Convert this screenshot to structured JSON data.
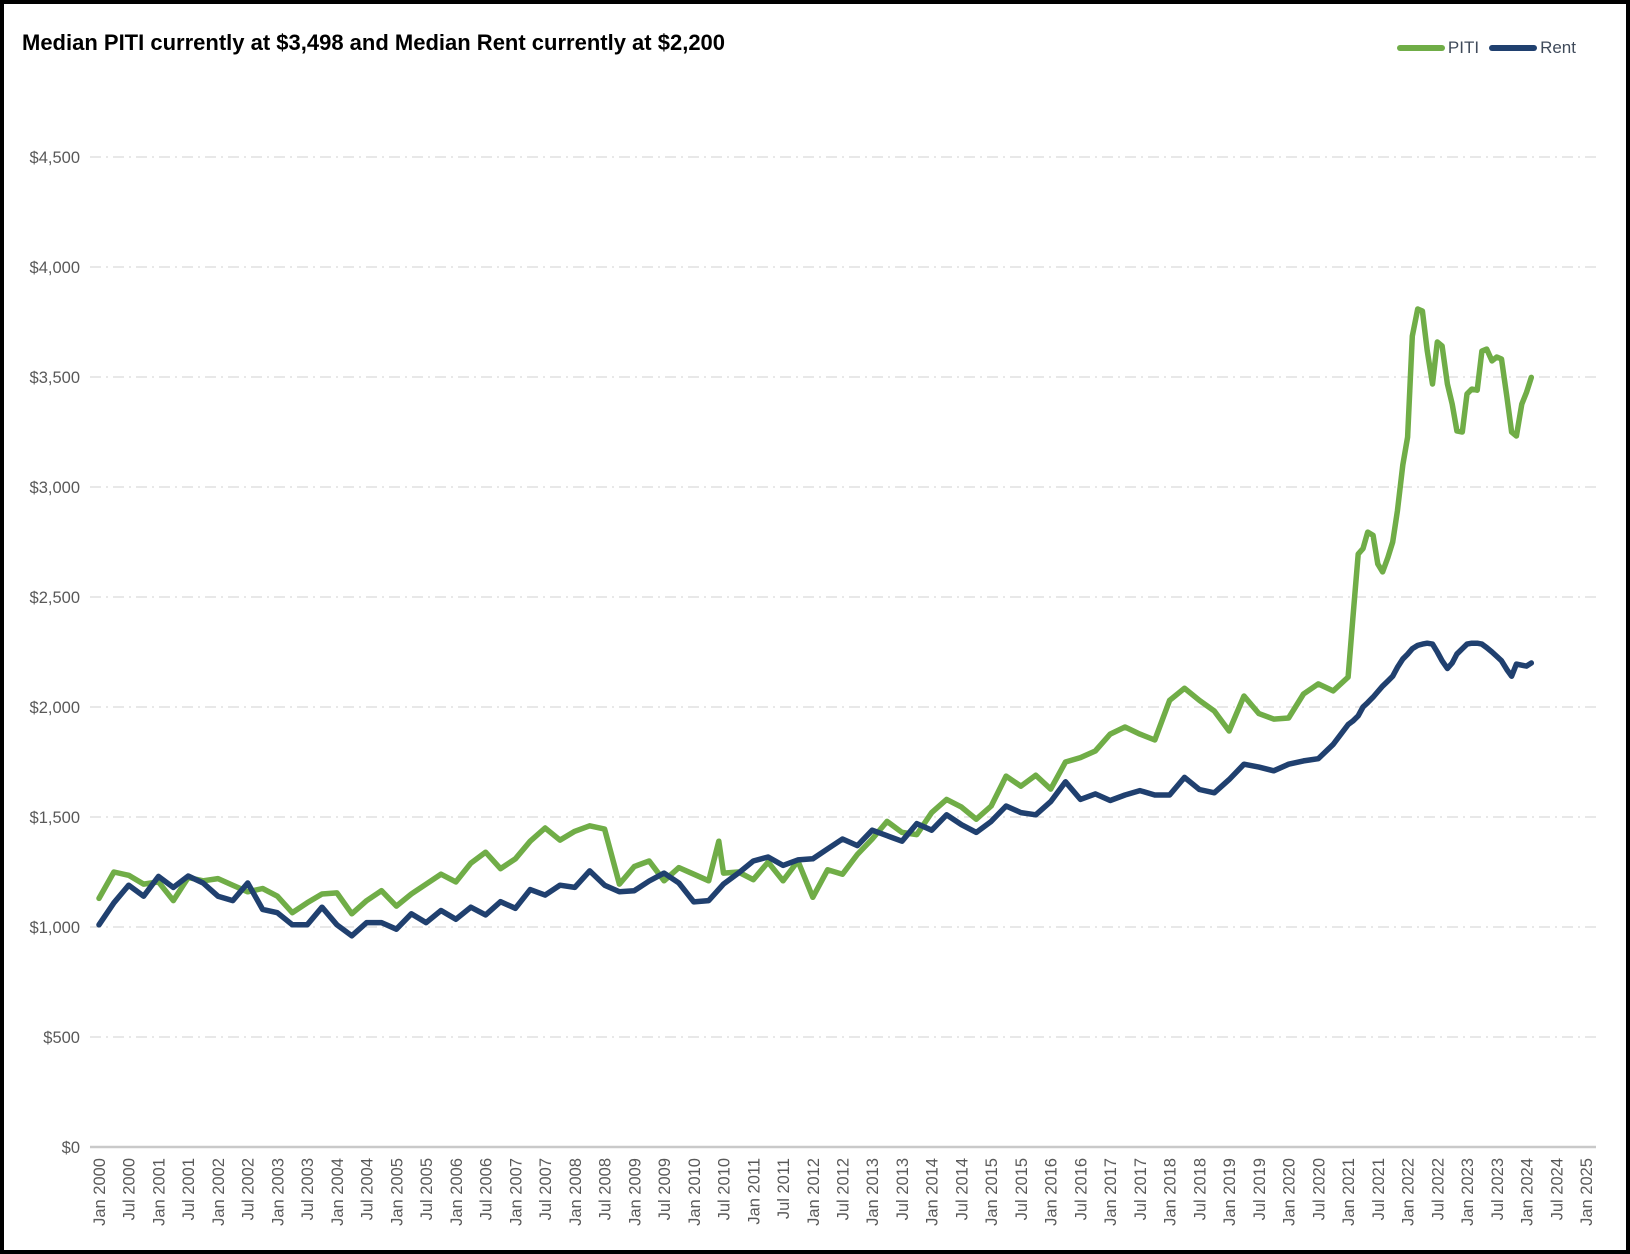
{
  "chart_data": {
    "type": "line",
    "title": "Median PITI currently at $3,498 and Median Rent currently at $2,200",
    "current_values": {
      "piti": "$3,498",
      "rent": "$2,200"
    },
    "legend_position": "top-right",
    "x_axis": {
      "label": "",
      "range_years": [
        2000,
        2025.3
      ],
      "tick_labels": [
        "Jan 2000",
        "Jul 2000",
        "Jan 2001",
        "Jul 2001",
        "Jan 2002",
        "Jul 2002",
        "Jan 2003",
        "Jul 2003",
        "Jan 2004",
        "Jul 2004",
        "Jan 2005",
        "Jul 2005",
        "Jan 2006",
        "Jul 2006",
        "Jan 2007",
        "Jul 2007",
        "Jan 2008",
        "Jul 2008",
        "Jan 2009",
        "Jul 2009",
        "Jan 2010",
        "Jul 2010",
        "Jan 2011",
        "Jul 2011",
        "Jan 2012",
        "Jul 2012",
        "Jan 2013",
        "Jul 2013",
        "Jan 2014",
        "Jul 2014",
        "Jan 2015",
        "Jul 2015",
        "Jan 2016",
        "Jul 2016",
        "Jan 2017",
        "Jul 2017",
        "Jan 2018",
        "Jul 2018",
        "Jan 2019",
        "Jul 2019",
        "Jan 2020",
        "Jul 2020",
        "Jan 2021",
        "Jul 2021",
        "Jan 2022",
        "Jul 2022",
        "Jan 2023",
        "Jul 2023",
        "Jan 2024",
        "Jul 2024",
        "Jan 2025"
      ]
    },
    "y_axis": {
      "label": "",
      "range": [
        0,
        4500
      ],
      "tick_values": [
        0,
        500,
        1000,
        1500,
        2000,
        2500,
        3000,
        3500,
        4000,
        4500
      ],
      "tick_labels": [
        "$0",
        "$500",
        "$1,000",
        "$1,500",
        "$2,000",
        "$2,500",
        "$3,000",
        "$3,500",
        "$4,000",
        "$4,500"
      ],
      "gridlines": "dashed",
      "gridline_color": "#d9d9d9",
      "axis_text_color": "#595959"
    },
    "series": [
      {
        "name": "PITI",
        "color": "#70ad47",
        "x": [
          2000,
          2000.25,
          2000.5,
          2000.75,
          2001,
          2001.25,
          2001.5,
          2001.75,
          2002,
          2002.25,
          2002.5,
          2002.75,
          2003,
          2003.25,
          2003.5,
          2003.75,
          2004,
          2004.25,
          2004.5,
          2004.75,
          2005,
          2005.25,
          2005.5,
          2005.75,
          2006,
          2006.25,
          2006.5,
          2006.75,
          2007,
          2007.25,
          2007.5,
          2007.75,
          2008,
          2008.25,
          2008.5,
          2008.75,
          2009,
          2009.25,
          2009.5,
          2009.75,
          2010,
          2010.25,
          2010.42,
          2010.5,
          2010.75,
          2011,
          2011.25,
          2011.5,
          2011.75,
          2012,
          2012.25,
          2012.5,
          2012.75,
          2013,
          2013.25,
          2013.5,
          2013.75,
          2014,
          2014.25,
          2014.5,
          2014.75,
          2015,
          2015.25,
          2015.5,
          2015.75,
          2016,
          2016.25,
          2016.5,
          2016.75,
          2017,
          2017.25,
          2017.5,
          2017.75,
          2018,
          2018.25,
          2018.5,
          2018.75,
          2019,
          2019.25,
          2019.5,
          2019.75,
          2020,
          2020.25,
          2020.5,
          2020.75,
          2021,
          2021.08,
          2021.17,
          2021.25,
          2021.33,
          2021.42,
          2021.5,
          2021.58,
          2021.67,
          2021.75,
          2021.83,
          2021.92,
          2022,
          2022.08,
          2022.17,
          2022.25,
          2022.33,
          2022.42,
          2022.5,
          2022.58,
          2022.67,
          2022.75,
          2022.83,
          2022.92,
          2023,
          2023.08,
          2023.17,
          2023.25,
          2023.33,
          2023.42,
          2023.5,
          2023.58,
          2023.67,
          2023.75,
          2023.83,
          2023.92,
          2024,
          2024.08
        ],
        "values": [
          1130,
          1250,
          1235,
          1195,
          1205,
          1120,
          1225,
          1210,
          1220,
          1190,
          1160,
          1175,
          1140,
          1065,
          1110,
          1150,
          1155,
          1060,
          1120,
          1165,
          1095,
          1150,
          1195,
          1240,
          1205,
          1290,
          1340,
          1265,
          1310,
          1390,
          1450,
          1395,
          1435,
          1460,
          1445,
          1195,
          1275,
          1300,
          1210,
          1270,
          1240,
          1210,
          1390,
          1245,
          1250,
          1215,
          1295,
          1210,
          1300,
          1135,
          1260,
          1240,
          1330,
          1400,
          1480,
          1430,
          1420,
          1520,
          1580,
          1545,
          1490,
          1550,
          1686,
          1640,
          1690,
          1627,
          1750,
          1770,
          1800,
          1877,
          1909,
          1877,
          1850,
          2030,
          2085,
          2030,
          1982,
          1891,
          2050,
          1970,
          1945,
          1950,
          2059,
          2105,
          2073,
          2136,
          2400,
          2695,
          2720,
          2795,
          2780,
          2650,
          2614,
          2680,
          2750,
          2891,
          3100,
          3227,
          3686,
          3809,
          3800,
          3620,
          3468,
          3659,
          3641,
          3468,
          3377,
          3255,
          3250,
          3423,
          3445,
          3440,
          3618,
          3627,
          3573,
          3591,
          3582,
          3409,
          3250,
          3232,
          3377,
          3430,
          3498
        ]
      },
      {
        "name": "Rent",
        "color": "#20406f",
        "x": [
          2000,
          2000.25,
          2000.5,
          2000.75,
          2001,
          2001.25,
          2001.5,
          2001.75,
          2002,
          2002.25,
          2002.5,
          2002.75,
          2003,
          2003.25,
          2003.5,
          2003.75,
          2004,
          2004.25,
          2004.5,
          2004.75,
          2005,
          2005.25,
          2005.5,
          2005.75,
          2006,
          2006.25,
          2006.5,
          2006.75,
          2007,
          2007.25,
          2007.5,
          2007.75,
          2008,
          2008.25,
          2008.5,
          2008.75,
          2009,
          2009.25,
          2009.5,
          2009.75,
          2010,
          2010.25,
          2010.5,
          2010.75,
          2011,
          2011.25,
          2011.5,
          2011.75,
          2012,
          2012.25,
          2012.5,
          2012.75,
          2013,
          2013.25,
          2013.5,
          2013.75,
          2014,
          2014.25,
          2014.5,
          2014.75,
          2015,
          2015.25,
          2015.5,
          2015.75,
          2016,
          2016.25,
          2016.5,
          2016.75,
          2017,
          2017.25,
          2017.5,
          2017.75,
          2018,
          2018.25,
          2018.5,
          2018.75,
          2019,
          2019.25,
          2019.5,
          2019.75,
          2020,
          2020.25,
          2020.5,
          2020.75,
          2021,
          2021.08,
          2021.17,
          2021.25,
          2021.33,
          2021.42,
          2021.5,
          2021.58,
          2021.67,
          2021.75,
          2021.83,
          2021.92,
          2022,
          2022.08,
          2022.17,
          2022.25,
          2022.33,
          2022.42,
          2022.5,
          2022.58,
          2022.67,
          2022.75,
          2022.83,
          2022.92,
          2023,
          2023.08,
          2023.17,
          2023.25,
          2023.33,
          2023.42,
          2023.5,
          2023.58,
          2023.67,
          2023.75,
          2023.83,
          2023.92,
          2024,
          2024.08
        ],
        "values": [
          1010,
          1110,
          1190,
          1140,
          1230,
          1180,
          1232,
          1200,
          1140,
          1120,
          1200,
          1080,
          1065,
          1010,
          1010,
          1090,
          1010,
          960,
          1020,
          1020,
          990,
          1060,
          1020,
          1075,
          1035,
          1090,
          1055,
          1115,
          1085,
          1170,
          1145,
          1190,
          1180,
          1255,
          1190,
          1160,
          1165,
          1209,
          1245,
          1200,
          1114,
          1120,
          1195,
          1245,
          1300,
          1318,
          1280,
          1305,
          1310,
          1355,
          1400,
          1370,
          1440,
          1415,
          1390,
          1470,
          1440,
          1510,
          1465,
          1430,
          1480,
          1550,
          1520,
          1510,
          1570,
          1660,
          1580,
          1605,
          1575,
          1600,
          1620,
          1600,
          1600,
          1680,
          1625,
          1610,
          1670,
          1740,
          1727,
          1710,
          1740,
          1755,
          1765,
          1830,
          1920,
          1936,
          1960,
          2000,
          2020,
          2045,
          2070,
          2095,
          2118,
          2140,
          2180,
          2218,
          2240,
          2265,
          2280,
          2286,
          2290,
          2286,
          2250,
          2210,
          2175,
          2200,
          2241,
          2265,
          2286,
          2290,
          2290,
          2286,
          2270,
          2250,
          2230,
          2210,
          2170,
          2140,
          2195,
          2190,
          2186,
          2200
        ]
      }
    ]
  }
}
